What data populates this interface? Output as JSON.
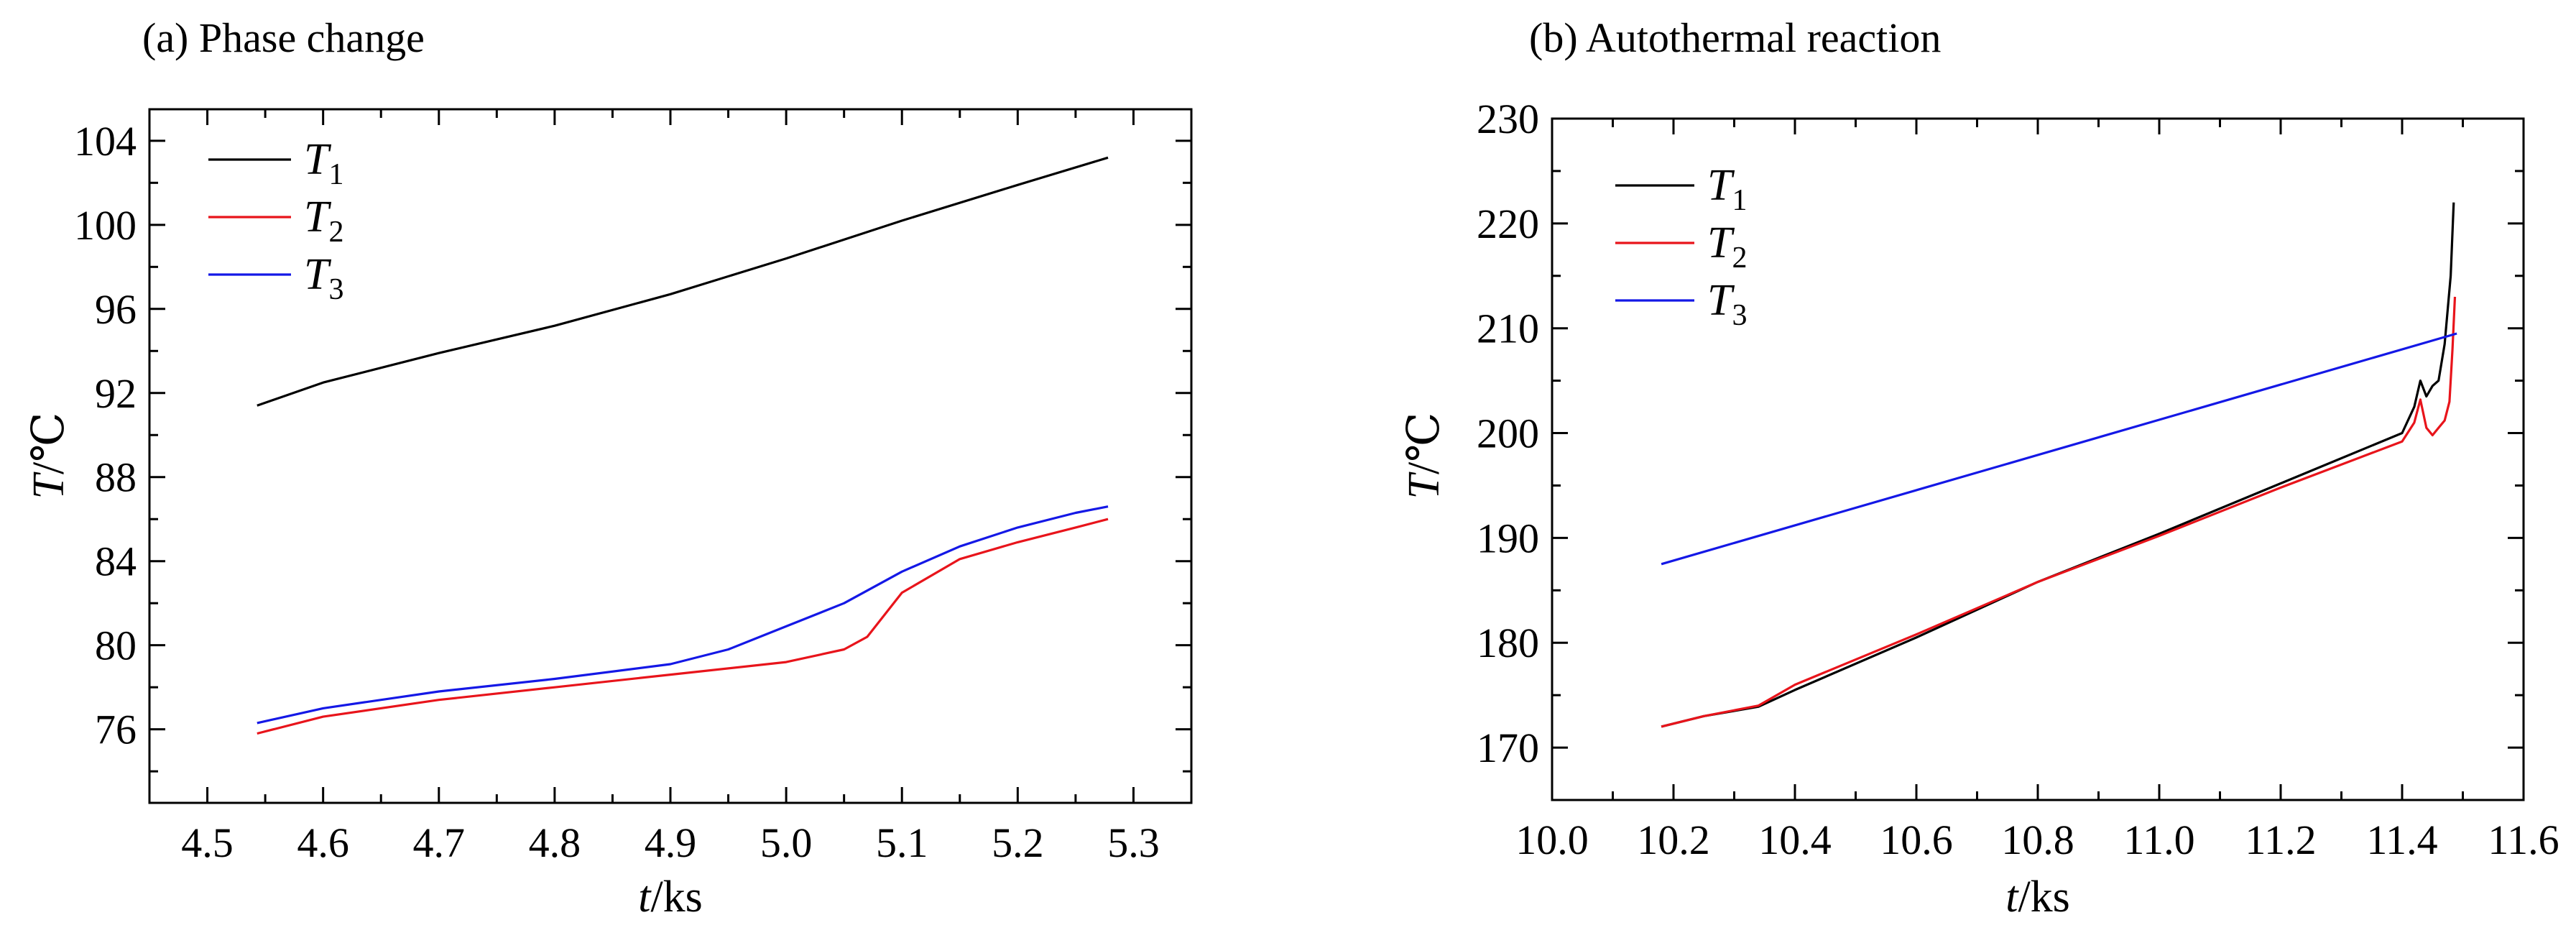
{
  "chart_data": [
    {
      "type": "line",
      "title": "(a) Phase change",
      "xlabel_var": "t",
      "xlabel_unit": "/ks",
      "ylabel_var": "T",
      "ylabel_unit": "/℃",
      "xlim": [
        4.45,
        5.35
      ],
      "ylim": [
        72.5,
        105.5
      ],
      "xticks": [
        4.5,
        4.6,
        4.7,
        4.8,
        4.9,
        5.0,
        5.1,
        5.2,
        5.3
      ],
      "xtick_labels": [
        "4.5",
        "4.6",
        "4.7",
        "4.8",
        "4.9",
        "5.0",
        "5.1",
        "5.2",
        "5.3"
      ],
      "yticks": [
        76,
        80,
        84,
        88,
        92,
        96,
        100,
        104
      ],
      "ytick_labels": [
        "76",
        "80",
        "84",
        "88",
        "92",
        "96",
        "100",
        "104"
      ],
      "grid": false,
      "legend_position": "top-left",
      "series": [
        {
          "name": "T",
          "sub": "1",
          "color": "#000000",
          "x": [
            4.543,
            4.6,
            4.7,
            4.8,
            4.9,
            5.0,
            5.1,
            5.2,
            5.278
          ],
          "y": [
            91.4,
            92.5,
            93.9,
            95.2,
            96.7,
            98.4,
            100.2,
            101.9,
            103.2
          ]
        },
        {
          "name": "T",
          "sub": "2",
          "color": "#e8141b",
          "x": [
            4.543,
            4.6,
            4.7,
            4.8,
            4.9,
            5.0,
            5.05,
            5.07,
            5.1,
            5.15,
            5.2,
            5.25,
            5.278
          ],
          "y": [
            75.8,
            76.6,
            77.4,
            78.0,
            78.6,
            79.2,
            79.8,
            80.4,
            82.5,
            84.1,
            84.9,
            85.6,
            86.0
          ]
        },
        {
          "name": "T",
          "sub": "3",
          "color": "#1418e6",
          "x": [
            4.543,
            4.6,
            4.7,
            4.8,
            4.9,
            4.95,
            5.0,
            5.05,
            5.1,
            5.15,
            5.2,
            5.25,
            5.278
          ],
          "y": [
            76.3,
            77.0,
            77.8,
            78.4,
            79.1,
            79.8,
            80.9,
            82.0,
            83.5,
            84.7,
            85.6,
            86.3,
            86.6
          ]
        }
      ]
    },
    {
      "type": "line",
      "title": "(b) Autothermal reaction",
      "xlabel_var": "t",
      "xlabel_unit": "/ks",
      "ylabel_var": "T",
      "ylabel_unit": "/℃",
      "xlim": [
        10.0,
        11.6
      ],
      "ylim": [
        165,
        230
      ],
      "xticks": [
        10.0,
        10.2,
        10.4,
        10.6,
        10.8,
        11.0,
        11.2,
        11.4,
        11.6
      ],
      "xtick_labels": [
        "10.0",
        "10.2",
        "10.4",
        "10.6",
        "10.8",
        "11.0",
        "11.2",
        "11.4",
        "11.6"
      ],
      "yticks": [
        170,
        180,
        190,
        200,
        210,
        220,
        230
      ],
      "ytick_labels": [
        "170",
        "180",
        "190",
        "200",
        "210",
        "220",
        "230"
      ],
      "grid": false,
      "legend_position": "top-left",
      "series": [
        {
          "name": "T",
          "sub": "1",
          "color": "#000000",
          "x": [
            10.18,
            10.25,
            10.34,
            10.4,
            10.6,
            10.8,
            11.0,
            11.2,
            11.4,
            11.42,
            11.43,
            11.44,
            11.45,
            11.46,
            11.47,
            11.48,
            11.485
          ],
          "y": [
            172.0,
            173.0,
            173.9,
            175.5,
            180.5,
            185.8,
            190.4,
            195.2,
            200.0,
            202.5,
            205.0,
            203.5,
            204.5,
            205.0,
            208.5,
            215.0,
            222.0
          ]
        },
        {
          "name": "T",
          "sub": "2",
          "color": "#e8141b",
          "x": [
            10.18,
            10.25,
            10.34,
            10.4,
            10.6,
            10.8,
            11.0,
            11.2,
            11.4,
            11.42,
            11.43,
            11.44,
            11.45,
            11.46,
            11.47,
            11.478,
            11.483,
            11.487
          ],
          "y": [
            172.0,
            173.0,
            174.0,
            176.0,
            180.8,
            185.8,
            190.2,
            194.8,
            199.2,
            201.0,
            203.2,
            200.5,
            199.8,
            200.5,
            201.2,
            203.0,
            208.0,
            213.0
          ]
        },
        {
          "name": "T",
          "sub": "3",
          "color": "#1418e6",
          "x": [
            10.18,
            11.49
          ],
          "y": [
            187.5,
            209.5
          ]
        }
      ]
    }
  ]
}
